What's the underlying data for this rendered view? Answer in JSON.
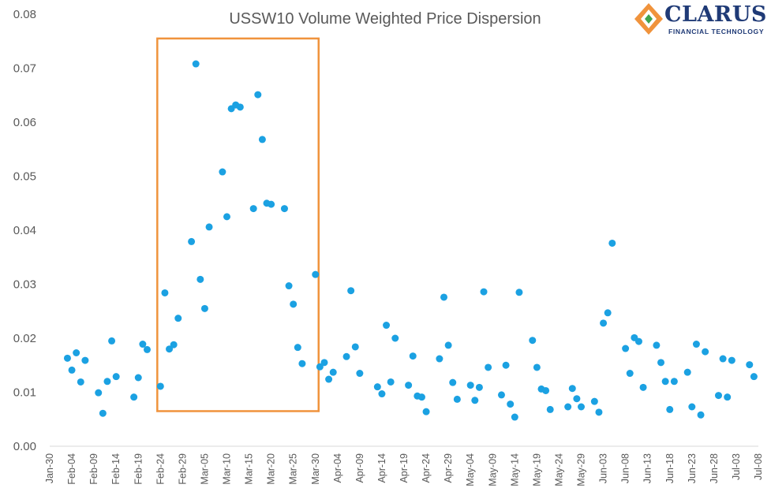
{
  "colors": {
    "marker": "#1BA1E2",
    "highlight_box": "#F0933C",
    "text": "#595959",
    "logo_navy": "#1F3A76",
    "logo_orange": "#F0933C",
    "logo_green": "#3FA34D"
  },
  "logo": {
    "name": "CLARUS",
    "tagline": "FINANCIAL TECHNOLOGY"
  },
  "chart_data": {
    "type": "scatter",
    "title": "USSW10 Volume Weighted Price Dispersion",
    "xlabel": "",
    "ylabel": "",
    "ylim": [
      0,
      0.08
    ],
    "y_ticks": [
      "0.00",
      "0.01",
      "0.02",
      "0.03",
      "0.04",
      "0.05",
      "0.06",
      "0.07",
      "0.08"
    ],
    "x_ticks": [
      "Jan-30",
      "Feb-04",
      "Feb-09",
      "Feb-14",
      "Feb-19",
      "Feb-24",
      "Feb-29",
      "Mar-05",
      "Mar-10",
      "Mar-15",
      "Mar-20",
      "Mar-25",
      "Mar-30",
      "Apr-04",
      "Apr-09",
      "Apr-14",
      "Apr-19",
      "Apr-24",
      "Apr-29",
      "May-04",
      "May-09",
      "May-14",
      "May-19",
      "May-24",
      "May-29",
      "Jun-03",
      "Jun-08",
      "Jun-13",
      "Jun-18",
      "Jun-23",
      "Jun-28",
      "Jul-03",
      "Jul-08"
    ],
    "x_range": [
      "2020-01-30",
      "2020-07-08"
    ],
    "grid": false,
    "highlight": {
      "x_range": [
        "2020-02-24",
        "2020-03-30"
      ],
      "y_range": [
        0.0065,
        0.0755
      ]
    },
    "series": [
      {
        "points": [
          [
            "2020-02-03",
            0.0163
          ],
          [
            "2020-02-04",
            0.0141
          ],
          [
            "2020-02-05",
            0.0173
          ],
          [
            "2020-02-06",
            0.0119
          ],
          [
            "2020-02-07",
            0.0159
          ],
          [
            "2020-02-10",
            0.0099
          ],
          [
            "2020-02-11",
            0.0061
          ],
          [
            "2020-02-12",
            0.012
          ],
          [
            "2020-02-13",
            0.0195
          ],
          [
            "2020-02-14",
            0.0129
          ],
          [
            "2020-02-18",
            0.0091
          ],
          [
            "2020-02-19",
            0.0127
          ],
          [
            "2020-02-20",
            0.0189
          ],
          [
            "2020-02-21",
            0.0179
          ],
          [
            "2020-02-24",
            0.0111
          ],
          [
            "2020-02-25",
            0.0284
          ],
          [
            "2020-02-26",
            0.018
          ],
          [
            "2020-02-27",
            0.0188
          ],
          [
            "2020-02-28",
            0.0237
          ],
          [
            "2020-03-02",
            0.0379
          ],
          [
            "2020-03-03",
            0.0708
          ],
          [
            "2020-03-04",
            0.0309
          ],
          [
            "2020-03-05",
            0.0255
          ],
          [
            "2020-03-06",
            0.0406
          ],
          [
            "2020-03-09",
            0.0508
          ],
          [
            "2020-03-10",
            0.0425
          ],
          [
            "2020-03-11",
            0.0625
          ],
          [
            "2020-03-12",
            0.0632
          ],
          [
            "2020-03-13",
            0.0628
          ],
          [
            "2020-03-16",
            0.044
          ],
          [
            "2020-03-17",
            0.0651
          ],
          [
            "2020-03-18",
            0.0568
          ],
          [
            "2020-03-19",
            0.045
          ],
          [
            "2020-03-20",
            0.0448
          ],
          [
            "2020-03-23",
            0.044
          ],
          [
            "2020-03-24",
            0.0297
          ],
          [
            "2020-03-25",
            0.0263
          ],
          [
            "2020-03-26",
            0.0183
          ],
          [
            "2020-03-27",
            0.0153
          ],
          [
            "2020-03-30",
            0.0318
          ],
          [
            "2020-03-31",
            0.0147
          ],
          [
            "2020-04-01",
            0.0155
          ],
          [
            "2020-04-02",
            0.0124
          ],
          [
            "2020-04-03",
            0.0137
          ],
          [
            "2020-04-06",
            0.0166
          ],
          [
            "2020-04-07",
            0.0288
          ],
          [
            "2020-04-08",
            0.0184
          ],
          [
            "2020-04-09",
            0.0135
          ],
          [
            "2020-04-13",
            0.011
          ],
          [
            "2020-04-14",
            0.0097
          ],
          [
            "2020-04-15",
            0.0224
          ],
          [
            "2020-04-16",
            0.0119
          ],
          [
            "2020-04-17",
            0.02
          ],
          [
            "2020-04-20",
            0.0113
          ],
          [
            "2020-04-21",
            0.0167
          ],
          [
            "2020-04-22",
            0.0093
          ],
          [
            "2020-04-23",
            0.0091
          ],
          [
            "2020-04-24",
            0.0064
          ],
          [
            "2020-04-27",
            0.0162
          ],
          [
            "2020-04-28",
            0.0276
          ],
          [
            "2020-04-29",
            0.0187
          ],
          [
            "2020-04-30",
            0.0118
          ],
          [
            "2020-05-01",
            0.0087
          ],
          [
            "2020-05-04",
            0.0113
          ],
          [
            "2020-05-05",
            0.0085
          ],
          [
            "2020-05-06",
            0.0109
          ],
          [
            "2020-05-07",
            0.0286
          ],
          [
            "2020-05-08",
            0.0146
          ],
          [
            "2020-05-11",
            0.0095
          ],
          [
            "2020-05-12",
            0.015
          ],
          [
            "2020-05-13",
            0.0078
          ],
          [
            "2020-05-14",
            0.0054
          ],
          [
            "2020-05-15",
            0.0285
          ],
          [
            "2020-05-18",
            0.0196
          ],
          [
            "2020-05-19",
            0.0146
          ],
          [
            "2020-05-20",
            0.0106
          ],
          [
            "2020-05-21",
            0.0103
          ],
          [
            "2020-05-22",
            0.0068
          ],
          [
            "2020-05-26",
            0.0073
          ],
          [
            "2020-05-27",
            0.0107
          ],
          [
            "2020-05-28",
            0.0088
          ],
          [
            "2020-05-29",
            0.0073
          ],
          [
            "2020-06-01",
            0.0083
          ],
          [
            "2020-06-02",
            0.0063
          ],
          [
            "2020-06-03",
            0.0228
          ],
          [
            "2020-06-04",
            0.0247
          ],
          [
            "2020-06-05",
            0.0376
          ],
          [
            "2020-06-08",
            0.0181
          ],
          [
            "2020-06-09",
            0.0135
          ],
          [
            "2020-06-10",
            0.0201
          ],
          [
            "2020-06-11",
            0.0194
          ],
          [
            "2020-06-12",
            0.0109
          ],
          [
            "2020-06-15",
            0.0187
          ],
          [
            "2020-06-16",
            0.0155
          ],
          [
            "2020-06-17",
            0.012
          ],
          [
            "2020-06-18",
            0.0068
          ],
          [
            "2020-06-19",
            0.012
          ],
          [
            "2020-06-22",
            0.0137
          ],
          [
            "2020-06-23",
            0.0073
          ],
          [
            "2020-06-24",
            0.0189
          ],
          [
            "2020-06-25",
            0.0058
          ],
          [
            "2020-06-26",
            0.0175
          ],
          [
            "2020-06-29",
            0.0094
          ],
          [
            "2020-06-30",
            0.0162
          ],
          [
            "2020-07-01",
            0.0091
          ],
          [
            "2020-07-02",
            0.0159
          ],
          [
            "2020-07-06",
            0.0151
          ],
          [
            "2020-07-07",
            0.0129
          ]
        ]
      }
    ]
  }
}
